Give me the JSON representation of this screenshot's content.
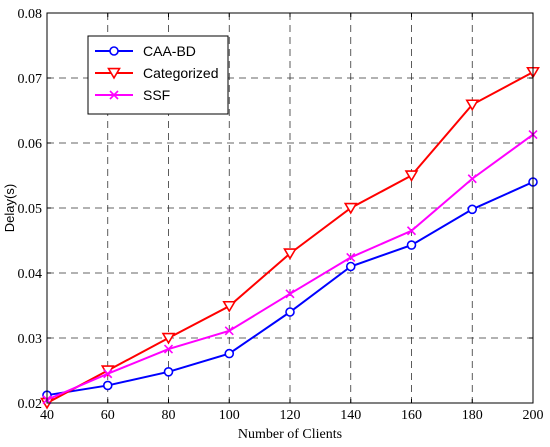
{
  "chart_data": {
    "type": "line",
    "xlabel": "Number of Clients",
    "ylabel": "Delay(s)",
    "x": [
      40,
      60,
      80,
      100,
      120,
      140,
      160,
      180,
      200
    ],
    "xlim": [
      40,
      200
    ],
    "ylim": [
      0.02,
      0.08
    ],
    "xticks": [
      "40",
      "60",
      "80",
      "100",
      "120",
      "140",
      "160",
      "180",
      "200"
    ],
    "yticks": [
      "0.02",
      "0.03",
      "0.04",
      "0.05",
      "0.06",
      "0.07",
      "0.08"
    ],
    "grid": true,
    "grid_style": "dashed",
    "legend_position": "top-left",
    "series": [
      {
        "name": "CAA-BD",
        "color": "#0000ff",
        "marker": "circle",
        "values": [
          0.0212,
          0.0227,
          0.0248,
          0.0276,
          0.034,
          0.041,
          0.0443,
          0.0498,
          0.054
        ]
      },
      {
        "name": "Categorized",
        "color": "#ff0000",
        "marker": "triangle-down",
        "values": [
          0.02,
          0.025,
          0.03,
          0.0349,
          0.043,
          0.05,
          0.055,
          0.0659,
          0.0709
        ]
      },
      {
        "name": "SSF",
        "color": "#ff00ff",
        "marker": "x",
        "values": [
          0.0205,
          0.0245,
          0.0283,
          0.0311,
          0.0368,
          0.0424,
          0.0465,
          0.0545,
          0.0613
        ]
      }
    ]
  }
}
